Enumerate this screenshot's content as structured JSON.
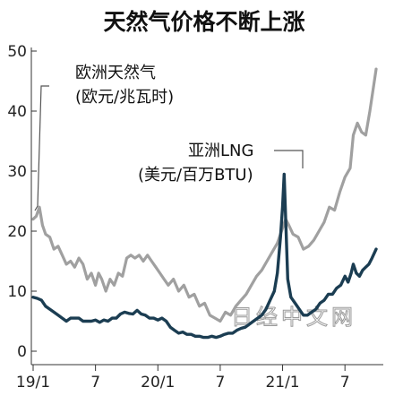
{
  "chart_data": {
    "type": "line",
    "title": "天然气价格不断上涨",
    "ylim": [
      0,
      50
    ],
    "yticks": [
      0,
      10,
      20,
      30,
      40,
      50
    ],
    "xlim": [
      0,
      33
    ],
    "xticks": [
      {
        "x": 0,
        "label": "19/1"
      },
      {
        "x": 6,
        "label": "7"
      },
      {
        "x": 12,
        "label": "20/1"
      },
      {
        "x": 18,
        "label": "7"
      },
      {
        "x": 24,
        "label": "21/1"
      },
      {
        "x": 30,
        "label": "7"
      }
    ],
    "grid": false,
    "series": [
      {
        "name": "欧洲天然气",
        "unit": "(欧元/兆瓦时)",
        "color": "#a0a0a0",
        "points": [
          [
            0.0,
            22
          ],
          [
            0.3,
            22.5
          ],
          [
            0.6,
            24
          ],
          [
            0.9,
            21
          ],
          [
            1.2,
            19.5
          ],
          [
            1.6,
            19
          ],
          [
            2.0,
            17
          ],
          [
            2.4,
            17.5
          ],
          [
            2.8,
            16
          ],
          [
            3.2,
            14.5
          ],
          [
            3.6,
            15
          ],
          [
            4.0,
            14
          ],
          [
            4.4,
            15.5
          ],
          [
            4.8,
            14.5
          ],
          [
            5.2,
            12
          ],
          [
            5.6,
            13
          ],
          [
            6.0,
            11
          ],
          [
            6.3,
            13
          ],
          [
            6.6,
            12
          ],
          [
            7.0,
            10
          ],
          [
            7.4,
            12
          ],
          [
            7.8,
            11
          ],
          [
            8.2,
            13
          ],
          [
            8.6,
            12.5
          ],
          [
            9.0,
            15.5
          ],
          [
            9.4,
            16
          ],
          [
            9.8,
            15.5
          ],
          [
            10.2,
            16
          ],
          [
            10.6,
            15
          ],
          [
            11.0,
            16
          ],
          [
            11.4,
            15
          ],
          [
            11.8,
            14
          ],
          [
            12.2,
            13
          ],
          [
            12.6,
            12
          ],
          [
            13.0,
            11
          ],
          [
            13.5,
            12
          ],
          [
            14.0,
            10
          ],
          [
            14.5,
            11
          ],
          [
            15.0,
            9
          ],
          [
            15.5,
            9.5
          ],
          [
            16.0,
            7.5
          ],
          [
            16.5,
            8
          ],
          [
            17.0,
            6
          ],
          [
            17.5,
            5.5
          ],
          [
            18.0,
            5
          ],
          [
            18.5,
            6.5
          ],
          [
            19.0,
            6
          ],
          [
            19.5,
            7.5
          ],
          [
            20.0,
            8.5
          ],
          [
            20.5,
            9.5
          ],
          [
            21.0,
            11
          ],
          [
            21.5,
            12.5
          ],
          [
            22.0,
            13.5
          ],
          [
            22.5,
            15
          ],
          [
            23.0,
            16.5
          ],
          [
            23.5,
            18
          ],
          [
            24.0,
            20.5
          ],
          [
            24.3,
            22
          ],
          [
            24.6,
            21
          ],
          [
            25.0,
            19.5
          ],
          [
            25.5,
            19
          ],
          [
            26.0,
            17
          ],
          [
            26.5,
            17.5
          ],
          [
            27.0,
            18.5
          ],
          [
            27.5,
            20
          ],
          [
            28.0,
            21.5
          ],
          [
            28.5,
            24
          ],
          [
            29.0,
            23.5
          ],
          [
            29.5,
            26.5
          ],
          [
            30.0,
            29
          ],
          [
            30.5,
            30.5
          ],
          [
            30.8,
            36
          ],
          [
            31.2,
            38
          ],
          [
            31.6,
            36.5
          ],
          [
            32.0,
            36
          ],
          [
            32.4,
            40
          ],
          [
            32.7,
            43.5
          ],
          [
            33.0,
            47
          ]
        ]
      },
      {
        "name": "亚洲LNG",
        "unit": "(美元/百万BTU)",
        "color": "#1b3d52",
        "points": [
          [
            0.0,
            9
          ],
          [
            0.4,
            8.8
          ],
          [
            0.8,
            8.5
          ],
          [
            1.2,
            7.5
          ],
          [
            1.6,
            7
          ],
          [
            2.0,
            6.5
          ],
          [
            2.4,
            6
          ],
          [
            2.8,
            5.5
          ],
          [
            3.2,
            5
          ],
          [
            3.6,
            5.5
          ],
          [
            4.0,
            5.5
          ],
          [
            4.4,
            5.5
          ],
          [
            4.8,
            5
          ],
          [
            5.2,
            5
          ],
          [
            5.6,
            5
          ],
          [
            6.0,
            5.2
          ],
          [
            6.4,
            4.8
          ],
          [
            6.8,
            5.2
          ],
          [
            7.2,
            5
          ],
          [
            7.6,
            5.5
          ],
          [
            8.0,
            5.5
          ],
          [
            8.4,
            6.2
          ],
          [
            8.8,
            6.5
          ],
          [
            9.2,
            6.3
          ],
          [
            9.6,
            6.2
          ],
          [
            10.0,
            6.8
          ],
          [
            10.4,
            6.2
          ],
          [
            10.8,
            6
          ],
          [
            11.2,
            5.5
          ],
          [
            11.6,
            5.5
          ],
          [
            12.0,
            5.2
          ],
          [
            12.4,
            5.5
          ],
          [
            12.8,
            5
          ],
          [
            13.2,
            4
          ],
          [
            13.6,
            3.5
          ],
          [
            14.0,
            3
          ],
          [
            14.4,
            3.2
          ],
          [
            14.8,
            2.8
          ],
          [
            15.2,
            2.8
          ],
          [
            15.6,
            2.5
          ],
          [
            16.0,
            2.5
          ],
          [
            16.4,
            2.3
          ],
          [
            16.8,
            2.3
          ],
          [
            17.2,
            2.5
          ],
          [
            17.6,
            2.3
          ],
          [
            18.0,
            2.5
          ],
          [
            18.4,
            2.8
          ],
          [
            18.8,
            3
          ],
          [
            19.2,
            3
          ],
          [
            19.6,
            3.5
          ],
          [
            20.0,
            3.8
          ],
          [
            20.4,
            4
          ],
          [
            20.8,
            4.5
          ],
          [
            21.2,
            5
          ],
          [
            21.6,
            5.5
          ],
          [
            22.0,
            6
          ],
          [
            22.4,
            7
          ],
          [
            22.8,
            8.5
          ],
          [
            23.2,
            10
          ],
          [
            23.5,
            13
          ],
          [
            23.8,
            19
          ],
          [
            24.0,
            24
          ],
          [
            24.15,
            29.5
          ],
          [
            24.3,
            22
          ],
          [
            24.5,
            12
          ],
          [
            24.8,
            9
          ],
          [
            25.2,
            8
          ],
          [
            25.6,
            7
          ],
          [
            26.0,
            6
          ],
          [
            26.4,
            6
          ],
          [
            26.8,
            6.5
          ],
          [
            27.2,
            7
          ],
          [
            27.6,
            8
          ],
          [
            28.0,
            8.5
          ],
          [
            28.4,
            9.5
          ],
          [
            28.8,
            9.5
          ],
          [
            29.2,
            10.5
          ],
          [
            29.6,
            11
          ],
          [
            30.0,
            12.5
          ],
          [
            30.3,
            11.5
          ],
          [
            30.6,
            13
          ],
          [
            30.8,
            14.5
          ],
          [
            31.1,
            13
          ],
          [
            31.4,
            12.5
          ],
          [
            31.7,
            13.5
          ],
          [
            32.0,
            14
          ],
          [
            32.3,
            14.5
          ],
          [
            32.6,
            15.5
          ],
          [
            33.0,
            17
          ]
        ]
      }
    ]
  },
  "watermark": "日经中文网"
}
